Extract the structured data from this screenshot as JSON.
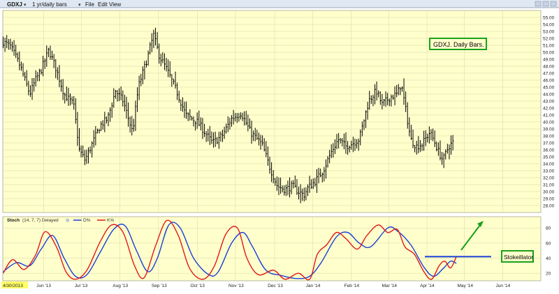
{
  "toolbar": {
    "symbol": "GDXJ",
    "timeframe": "1 yr/daily bars",
    "menu": [
      "File",
      "Edit",
      "View"
    ]
  },
  "colors": {
    "chart_bg": "#ffffcc",
    "toolbar_bg": "#dfe8f3",
    "bars": "#000000",
    "stoch_d": "#1a3fd8",
    "stoch_k": "#e01818",
    "annotation_green": "#1aa01a",
    "threshold_line": "#1a3fd8"
  },
  "chart_data": [
    {
      "type": "ohlc",
      "title": "",
      "annotation": "GDXJ. Daily Bars.",
      "ylim": [
        27,
        56
      ],
      "y_ticks": [
        "28.00",
        "29.00",
        "30.00",
        "31.00",
        "32.00",
        "33.00",
        "34.00",
        "35.00",
        "36.00",
        "37.00",
        "38.00",
        "39.00",
        "40.00",
        "41.00",
        "42.00",
        "43.00",
        "44.00",
        "45.00",
        "46.00",
        "47.00",
        "48.00",
        "49.00",
        "50.00",
        "51.00",
        "52.00",
        "53.00",
        "54.00",
        "55.00"
      ],
      "x_labels": [
        "4/30/2013",
        "Jun '13",
        "Jul '13",
        "Aug '13",
        "Sep '13",
        "Oct '13",
        "Nov '13",
        "Dec '13",
        "Jan '14",
        "Feb '14",
        "Mar '14",
        "Apr '14",
        "May '14",
        "Jun '14"
      ],
      "x_label_positions": [
        0,
        1.06,
        2.06,
        3.06,
        4.08,
        5.1,
        6.1,
        7.13,
        8.13,
        9.14,
        10.13,
        11.13,
        12.11,
        13.12
      ],
      "close_anchors": [
        [
          0,
          51.5
        ],
        [
          0.2,
          50.8
        ],
        [
          0.45,
          48.0
        ],
        [
          0.7,
          44.0
        ],
        [
          0.85,
          46.0
        ],
        [
          1.0,
          47.5
        ],
        [
          1.2,
          50.3
        ],
        [
          1.4,
          47.5
        ],
        [
          1.6,
          44.0
        ],
        [
          1.85,
          42.5
        ],
        [
          2.0,
          36.0
        ],
        [
          2.15,
          34.5
        ],
        [
          2.35,
          37.0
        ],
        [
          2.55,
          39.5
        ],
        [
          2.75,
          40.5
        ],
        [
          2.95,
          44.5
        ],
        [
          3.15,
          43.0
        ],
        [
          3.4,
          38.5
        ],
        [
          3.55,
          45.0
        ],
        [
          3.75,
          48.5
        ],
        [
          3.95,
          52.5
        ],
        [
          4.1,
          49.5
        ],
        [
          4.3,
          47.5
        ],
        [
          4.55,
          44.5
        ],
        [
          4.8,
          41.0
        ],
        [
          5.1,
          40.0
        ],
        [
          5.3,
          38.5
        ],
        [
          5.5,
          37.0
        ],
        [
          5.75,
          38.0
        ],
        [
          6.0,
          40.5
        ],
        [
          6.25,
          41.3
        ],
        [
          6.5,
          38.5
        ],
        [
          6.8,
          36.8
        ],
        [
          7.0,
          33.5
        ],
        [
          7.2,
          30.8
        ],
        [
          7.4,
          30.3
        ],
        [
          7.6,
          30.8
        ],
        [
          7.75,
          30.0
        ],
        [
          7.9,
          29.5
        ],
        [
          8.0,
          30.5
        ],
        [
          8.2,
          31.5
        ],
        [
          8.4,
          33.0
        ],
        [
          8.6,
          35.5
        ],
        [
          8.8,
          37.5
        ],
        [
          9.0,
          36.5
        ],
        [
          9.2,
          37.0
        ],
        [
          9.35,
          37.5
        ],
        [
          9.6,
          43.0
        ],
        [
          9.8,
          44.5
        ],
        [
          9.95,
          42.5
        ],
        [
          10.15,
          43.5
        ],
        [
          10.35,
          44.0
        ],
        [
          10.45,
          45.5
        ],
        [
          10.55,
          42.5
        ],
        [
          10.7,
          37.5
        ],
        [
          10.85,
          36.5
        ],
        [
          11.0,
          36.8
        ],
        [
          11.2,
          38.5
        ],
        [
          11.3,
          37.5
        ],
        [
          11.45,
          35.5
        ],
        [
          11.55,
          34.5
        ],
        [
          11.7,
          36.5
        ],
        [
          11.85,
          37.2
        ]
      ]
    },
    {
      "type": "line",
      "title": "",
      "indicator": "Stoch",
      "params": "(14, 7, 7) Delayed",
      "ylim": [
        10,
        95
      ],
      "y_ticks": [
        "20",
        "40",
        "60",
        "80"
      ],
      "series": [
        {
          "name": "D%",
          "color": "#1a3fd8",
          "points": [
            [
              0,
              22
            ],
            [
              0.35,
              34
            ],
            [
              0.7,
              30
            ],
            [
              1.0,
              52
            ],
            [
              1.3,
              70
            ],
            [
              1.6,
              40
            ],
            [
              1.9,
              16
            ],
            [
              2.2,
              18
            ],
            [
              2.55,
              48
            ],
            [
              2.9,
              78
            ],
            [
              3.2,
              83
            ],
            [
              3.5,
              50
            ],
            [
              3.8,
              22
            ],
            [
              4.05,
              40
            ],
            [
              4.35,
              84
            ],
            [
              4.65,
              80
            ],
            [
              5.0,
              40
            ],
            [
              5.4,
              18
            ],
            [
              5.65,
              22
            ],
            [
              6.0,
              60
            ],
            [
              6.3,
              74
            ],
            [
              6.55,
              55
            ],
            [
              6.9,
              24
            ],
            [
              7.3,
              17
            ],
            [
              7.7,
              13
            ],
            [
              8.05,
              16
            ],
            [
              8.35,
              34
            ],
            [
              8.75,
              68
            ],
            [
              9.05,
              74
            ],
            [
              9.35,
              60
            ],
            [
              9.65,
              55
            ],
            [
              10.1,
              80
            ],
            [
              10.35,
              76
            ],
            [
              10.7,
              58
            ],
            [
              11.05,
              28
            ],
            [
              11.3,
              16
            ],
            [
              11.55,
              26
            ],
            [
              11.75,
              36
            ],
            [
              11.9,
              33
            ]
          ]
        },
        {
          "name": "K%",
          "color": "#e01818",
          "points": [
            [
              0,
              20
            ],
            [
              0.25,
              38
            ],
            [
              0.55,
              25
            ],
            [
              0.85,
              44
            ],
            [
              1.1,
              75
            ],
            [
              1.4,
              55
            ],
            [
              1.65,
              22
            ],
            [
              1.9,
              12
            ],
            [
              2.2,
              24
            ],
            [
              2.55,
              62
            ],
            [
              2.85,
              84
            ],
            [
              3.15,
              74
            ],
            [
              3.45,
              30
            ],
            [
              3.7,
              14
            ],
            [
              4.0,
              56
            ],
            [
              4.3,
              90
            ],
            [
              4.6,
              70
            ],
            [
              4.9,
              26
            ],
            [
              5.25,
              12
            ],
            [
              5.55,
              30
            ],
            [
              5.85,
              72
            ],
            [
              6.15,
              80
            ],
            [
              6.4,
              40
            ],
            [
              6.7,
              18
            ],
            [
              7.1,
              24
            ],
            [
              7.4,
              12
            ],
            [
              7.75,
              20
            ],
            [
              8.05,
              12
            ],
            [
              8.25,
              45
            ],
            [
              8.5,
              58
            ],
            [
              8.75,
              74
            ],
            [
              9.0,
              66
            ],
            [
              9.3,
              52
            ],
            [
              9.55,
              70
            ],
            [
              9.85,
              84
            ],
            [
              10.1,
              74
            ],
            [
              10.35,
              78
            ],
            [
              10.55,
              55
            ],
            [
              10.8,
              45
            ],
            [
              11.05,
              22
            ],
            [
              11.25,
              12
            ],
            [
              11.45,
              30
            ],
            [
              11.6,
              36
            ],
            [
              11.75,
              27
            ],
            [
              11.9,
              42
            ]
          ]
        }
      ]
    }
  ],
  "annotations": {
    "stoch_label": "Stokeillator",
    "threshold_level": 42
  }
}
